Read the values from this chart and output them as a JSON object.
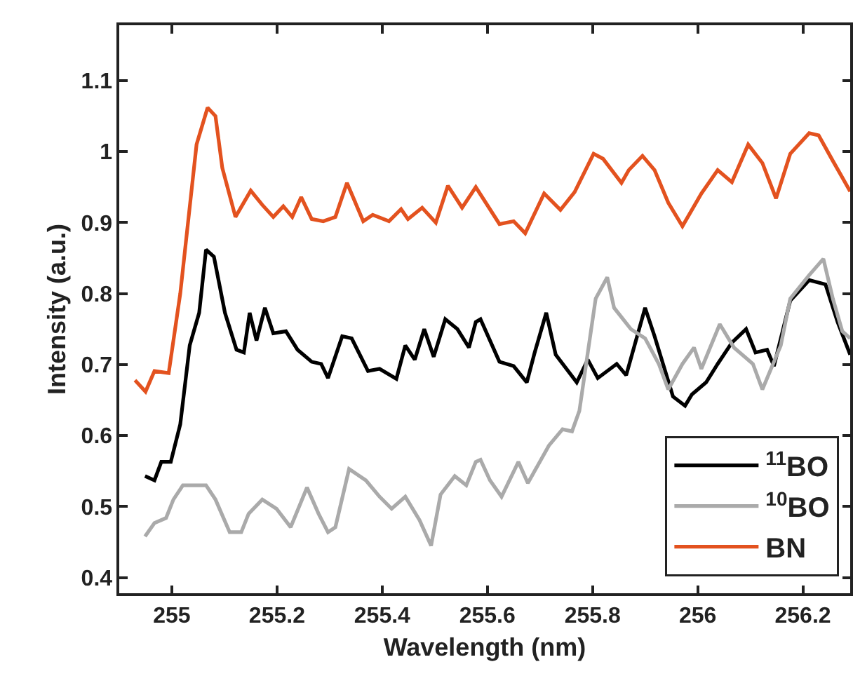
{
  "chart_data": {
    "type": "line",
    "xlabel": "Wavelength (nm)",
    "ylabel": "Intensity (a.u.)",
    "xlim": [
      254.9,
      256.29
    ],
    "ylim": [
      0.378,
      1.178
    ],
    "xticks": [
      255,
      255.2,
      255.4,
      255.6,
      255.8,
      256,
      256.2
    ],
    "yticks": [
      0.4,
      0.5,
      0.6,
      0.7,
      0.8,
      0.9,
      {
        "value": 1,
        "label": "1"
      },
      1.1
    ],
    "grid": false,
    "legend": "bottom right",
    "line_style": "solid",
    "marker": "none",
    "series": [
      {
        "name": "$^{11}$BO",
        "color": "#000000",
        "x": [
          254.949,
          254.967,
          254.98,
          254.998,
          255.016,
          255.034,
          255.052,
          255.065,
          255.08,
          255.101,
          255.123,
          255.137,
          255.148,
          255.161,
          255.177,
          255.193,
          255.217,
          255.239,
          255.266,
          255.284,
          255.297,
          255.324,
          255.342,
          255.373,
          255.395,
          255.427,
          255.444,
          255.462,
          255.48,
          255.498,
          255.52,
          255.543,
          255.565,
          255.578,
          255.587,
          255.623,
          255.65,
          255.675,
          255.69,
          255.712,
          255.73,
          255.77,
          255.791,
          255.81,
          255.846,
          255.864,
          255.9,
          255.918,
          255.953,
          255.976,
          255.989,
          256.016,
          256.038,
          256.065,
          256.092,
          256.11,
          256.132,
          256.145,
          256.176,
          256.212,
          256.243,
          256.266,
          256.29
        ],
        "values": [
          0.543,
          0.537,
          0.563,
          0.563,
          0.616,
          0.727,
          0.773,
          0.862,
          0.852,
          0.773,
          0.721,
          0.717,
          0.773,
          0.734,
          0.78,
          0.744,
          0.747,
          0.721,
          0.704,
          0.701,
          0.681,
          0.74,
          0.737,
          0.691,
          0.694,
          0.68,
          0.727,
          0.707,
          0.75,
          0.711,
          0.764,
          0.75,
          0.724,
          0.76,
          0.764,
          0.704,
          0.698,
          0.675,
          0.717,
          0.773,
          0.714,
          0.675,
          0.707,
          0.681,
          0.701,
          0.685,
          0.78,
          0.74,
          0.655,
          0.642,
          0.658,
          0.675,
          0.701,
          0.731,
          0.75,
          0.717,
          0.721,
          0.698,
          0.79,
          0.819,
          0.813,
          0.76,
          0.714
        ]
      },
      {
        "name": "$^{10}$BO",
        "color": "#aaaaaa",
        "x": [
          254.949,
          254.967,
          254.989,
          255.003,
          255.021,
          255.038,
          255.065,
          255.083,
          255.11,
          255.132,
          255.146,
          255.172,
          255.199,
          255.226,
          255.257,
          255.279,
          255.297,
          255.311,
          255.337,
          255.369,
          255.395,
          255.418,
          255.444,
          255.471,
          255.493,
          255.511,
          255.538,
          255.56,
          255.578,
          255.587,
          255.605,
          255.627,
          255.659,
          255.677,
          255.717,
          255.743,
          255.761,
          255.775,
          255.793,
          255.806,
          255.828,
          255.841,
          255.873,
          255.9,
          255.926,
          255.944,
          255.971,
          255.993,
          256.007,
          256.042,
          256.069,
          256.105,
          256.123,
          256.158,
          256.176,
          256.212,
          256.239,
          256.257,
          256.275,
          256.29
        ],
        "values": [
          0.458,
          0.477,
          0.484,
          0.51,
          0.53,
          0.53,
          0.53,
          0.51,
          0.464,
          0.464,
          0.49,
          0.51,
          0.497,
          0.471,
          0.527,
          0.49,
          0.464,
          0.471,
          0.553,
          0.537,
          0.514,
          0.497,
          0.514,
          0.481,
          0.445,
          0.517,
          0.543,
          0.53,
          0.563,
          0.566,
          0.537,
          0.514,
          0.563,
          0.533,
          0.586,
          0.609,
          0.606,
          0.635,
          0.727,
          0.793,
          0.823,
          0.78,
          0.75,
          0.737,
          0.701,
          0.665,
          0.701,
          0.724,
          0.694,
          0.757,
          0.724,
          0.701,
          0.665,
          0.727,
          0.793,
          0.826,
          0.849,
          0.793,
          0.747,
          0.737
        ]
      },
      {
        "name": "BN",
        "color": "#e3521f",
        "x": [
          254.93,
          254.95,
          254.967,
          254.994,
          255.016,
          255.047,
          255.068,
          255.083,
          255.096,
          255.121,
          255.15,
          255.172,
          255.193,
          255.212,
          255.229,
          255.246,
          255.266,
          255.288,
          255.311,
          255.333,
          255.364,
          255.382,
          255.413,
          255.436,
          255.449,
          255.476,
          255.502,
          255.525,
          255.552,
          255.578,
          255.623,
          255.65,
          255.672,
          255.708,
          255.739,
          255.766,
          255.802,
          255.82,
          255.855,
          255.869,
          255.895,
          255.918,
          255.944,
          255.971,
          256.007,
          256.038,
          256.065,
          256.096,
          256.123,
          256.149,
          256.176,
          256.212,
          256.23,
          256.257,
          256.29
        ],
        "values": [
          0.678,
          0.662,
          0.691,
          0.688,
          0.8,
          1.01,
          1.062,
          1.05,
          0.977,
          0.908,
          0.945,
          0.925,
          0.908,
          0.923,
          0.908,
          0.936,
          0.905,
          0.902,
          0.908,
          0.956,
          0.902,
          0.911,
          0.902,
          0.919,
          0.905,
          0.921,
          0.9,
          0.952,
          0.921,
          0.95,
          0.898,
          0.902,
          0.885,
          0.941,
          0.918,
          0.943,
          0.997,
          0.99,
          0.956,
          0.974,
          0.994,
          0.974,
          0.928,
          0.895,
          0.941,
          0.974,
          0.957,
          1.01,
          0.984,
          0.934,
          0.997,
          1.026,
          1.023,
          0.987,
          0.944
        ]
      }
    ]
  }
}
